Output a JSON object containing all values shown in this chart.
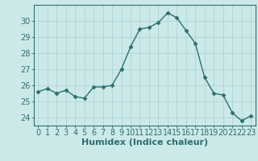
{
  "x": [
    0,
    1,
    2,
    3,
    4,
    5,
    6,
    7,
    8,
    9,
    10,
    11,
    12,
    13,
    14,
    15,
    16,
    17,
    18,
    19,
    20,
    21,
    22,
    23
  ],
  "y": [
    25.6,
    25.8,
    25.5,
    25.7,
    25.3,
    25.2,
    25.9,
    25.9,
    26.0,
    27.0,
    28.4,
    29.5,
    29.6,
    29.9,
    30.5,
    30.2,
    29.4,
    28.6,
    26.5,
    25.5,
    25.4,
    24.3,
    23.8,
    24.1
  ],
  "line_color": "#2d6e6e",
  "marker": "D",
  "marker_size": 2.5,
  "bg_color": "#cce9e9",
  "grid_color": "#aed4d4",
  "xlabel": "Humidex (Indice chaleur)",
  "xlabel_fontsize": 8,
  "ylabel_ticks": [
    24,
    25,
    26,
    27,
    28,
    29,
    30
  ],
  "ylim": [
    23.5,
    31.0
  ],
  "xlim": [
    -0.5,
    23.5
  ],
  "tick_fontsize": 7,
  "spine_color": "#2d6e6e"
}
